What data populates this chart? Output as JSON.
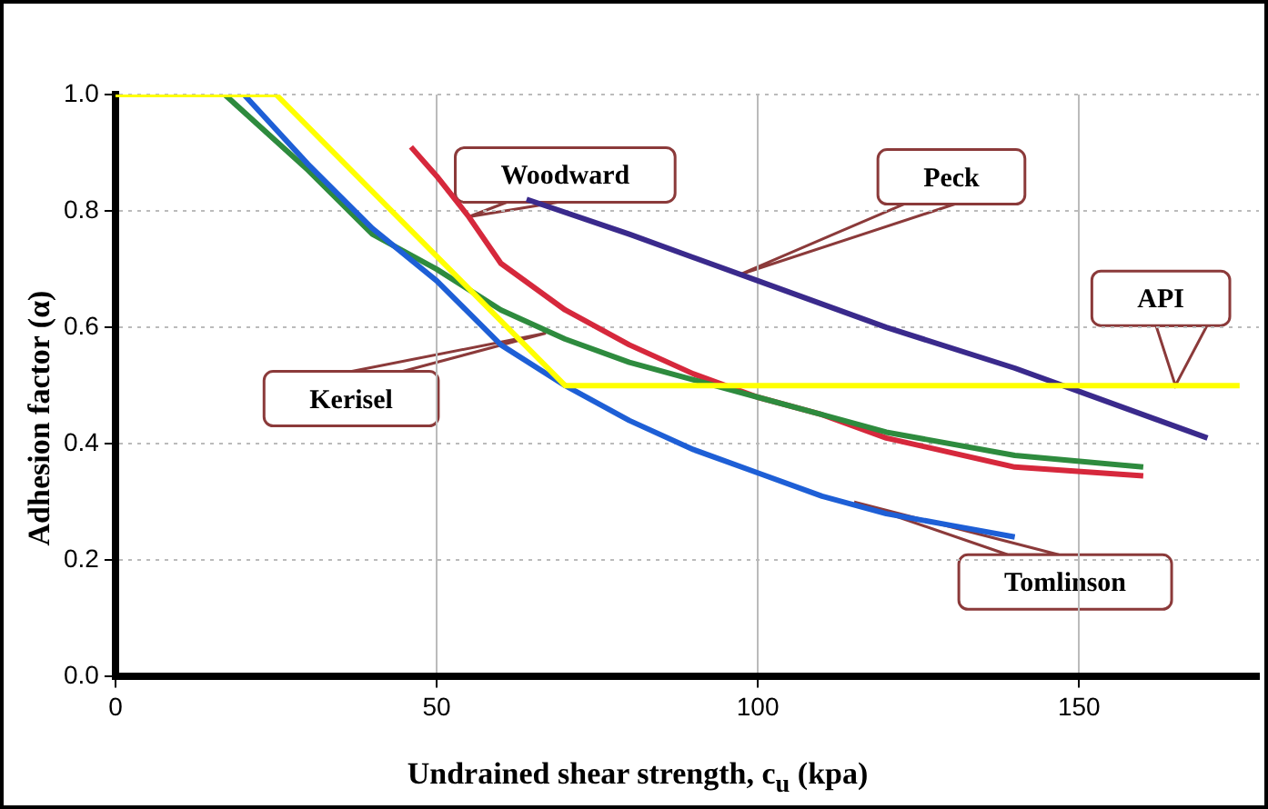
{
  "chart_data": {
    "type": "line",
    "xlabel": "Undrained shear strength, c$_{u}$ (kpa)",
    "ylabel": "Adhesion factor (α)",
    "xlim": [
      0,
      178
    ],
    "xticks": [
      0,
      50,
      100,
      150
    ],
    "ylim": [
      0,
      1
    ],
    "yticks": [
      {
        "value": 0,
        "label": "0.0"
      },
      {
        "value": 0.2,
        "label": "0.2"
      },
      {
        "value": 0.4,
        "label": "0.4"
      },
      {
        "value": 0.6,
        "label": "0.6"
      },
      {
        "value": 0.8,
        "label": "0.8"
      },
      {
        "value": 1,
        "label": "1.0"
      }
    ],
    "grid": true,
    "legend": false,
    "marker": "none",
    "line_style": "solid",
    "series": [
      {
        "color": "#ffff00",
        "x": [
          0,
          25,
          70,
          175
        ],
        "values": [
          1,
          1,
          0.5,
          0.5
        ]
      },
      {
        "color": "#1e5fd6",
        "x": [
          20,
          30,
          40,
          50,
          60,
          70,
          80,
          90,
          100,
          110,
          120,
          130,
          140
        ],
        "values": [
          1,
          0.88,
          0.77,
          0.68,
          0.57,
          0.5,
          0.44,
          0.39,
          0.35,
          0.31,
          0.28,
          0.26,
          0.24
        ]
      },
      {
        "color": "#2e8b3e",
        "x": [
          17,
          30,
          40,
          45,
          50,
          60,
          70,
          80,
          90,
          100,
          110,
          120,
          140,
          160
        ],
        "values": [
          1,
          0.87,
          0.76,
          0.73,
          0.7,
          0.63,
          0.58,
          0.54,
          0.51,
          0.48,
          0.45,
          0.42,
          0.38,
          0.36
        ]
      },
      {
        "color": "#d6283c",
        "x": [
          46,
          50,
          55,
          60,
          70,
          80,
          90,
          100,
          110,
          120,
          140,
          160
        ],
        "values": [
          0.91,
          0.86,
          0.79,
          0.71,
          0.63,
          0.57,
          0.52,
          0.48,
          0.45,
          0.41,
          0.36,
          0.345
        ]
      },
      {
        "color": "#3a2a8c",
        "x": [
          64,
          80,
          100,
          120,
          140,
          150,
          170
        ],
        "values": [
          0.82,
          0.76,
          0.68,
          0.6,
          0.53,
          0.49,
          0.41
        ]
      }
    ],
    "annotations": [
      {
        "text": "Woodward",
        "x": 55,
        "y": 0.79
      },
      {
        "text": "Peck",
        "x": 97,
        "y": 0.69
      },
      {
        "text": "API",
        "x": 165,
        "y": 0.5
      },
      {
        "text": "Kerisel",
        "x": 67,
        "y": 0.59
      },
      {
        "text": "Tomlinson",
        "x": 115,
        "y": 0.3
      }
    ]
  }
}
